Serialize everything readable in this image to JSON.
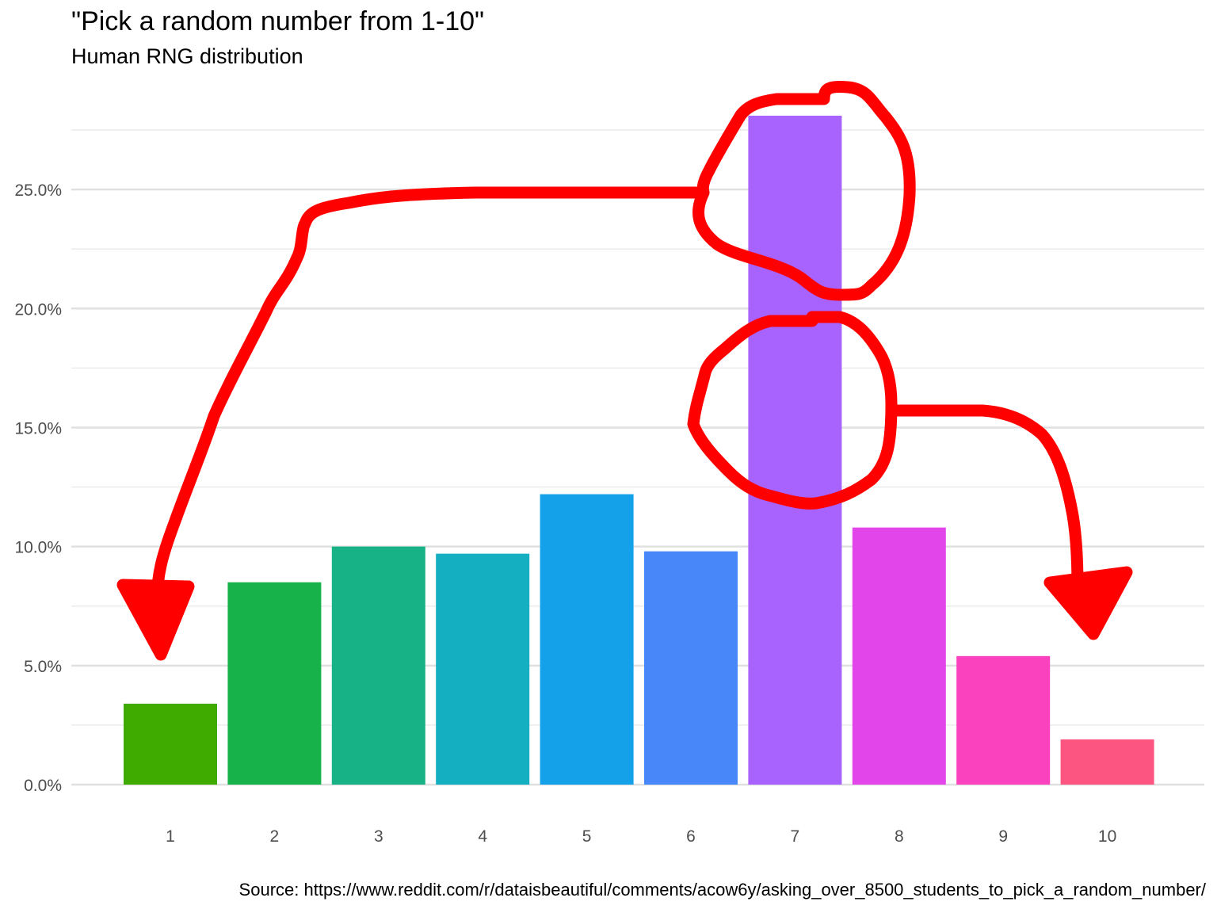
{
  "chart_data": {
    "type": "bar",
    "title": "\"Pick a random number from 1-10\"",
    "subtitle": "Human RNG distribution",
    "caption": "Source: https://www.reddit.com/r/dataisbeautiful/comments/acow6y/asking_over_8500_students_to_pick_a_random_number/",
    "categories": [
      "1",
      "2",
      "3",
      "4",
      "5",
      "6",
      "7",
      "8",
      "9",
      "10"
    ],
    "values": [
      3.4,
      8.5,
      10.0,
      9.7,
      12.2,
      9.8,
      28.1,
      10.8,
      5.4,
      1.9
    ],
    "colors": [
      "#3faa00",
      "#17b34a",
      "#17b387",
      "#14afc1",
      "#15a1ea",
      "#4787fa",
      "#a862fd",
      "#e246ea",
      "#fa42be",
      "#fc5581"
    ],
    "ylim": [
      0,
      28.1
    ],
    "yticks": [
      0,
      5,
      10,
      15,
      20,
      25
    ],
    "ytick_labels": [
      "0.0%",
      "5.0%",
      "10.0%",
      "15.0%",
      "20.0%",
      "25.0%"
    ],
    "grid": true,
    "xlabel": "",
    "ylabel": ""
  },
  "annotations": {
    "color": "#ff0000",
    "description": "hand-drawn red circles around the bar for 7 with arrows pointing to the bars for 1 and 10"
  }
}
